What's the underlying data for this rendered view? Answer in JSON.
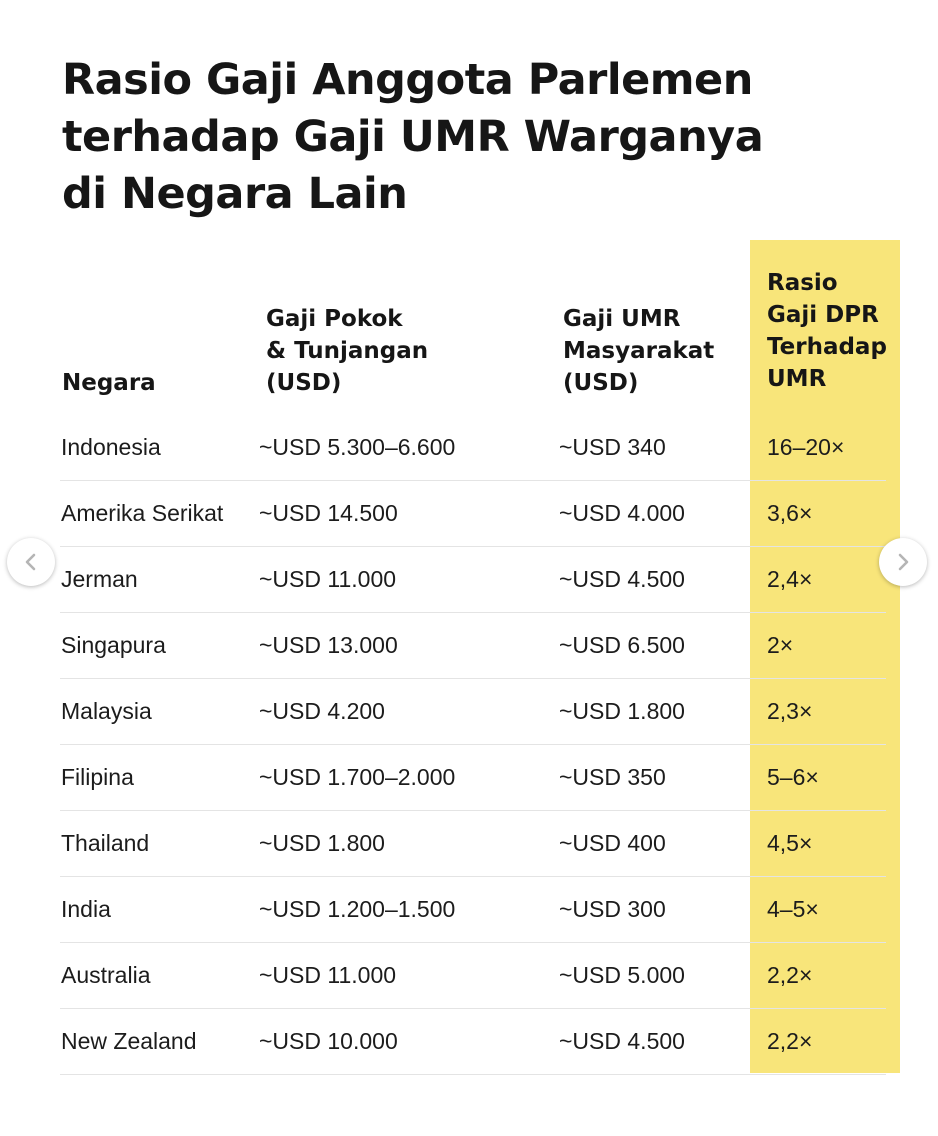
{
  "title": {
    "line1": "Rasio Gaji Anggota Parlemen",
    "line2": "terhadap Gaji UMR Warganya",
    "line3": "di Negara Lain"
  },
  "headers": {
    "country": "Negara",
    "salary": [
      "Gaji Pokok",
      "& Tunjangan",
      "(USD)"
    ],
    "umr": [
      "Gaji UMR",
      "Masyarakat",
      "(USD)"
    ],
    "ratio": [
      "Rasio",
      "Gaji DPR",
      "Terhadap",
      "UMR"
    ]
  },
  "rows": [
    {
      "country": "Indonesia",
      "salary": "~USD 5.300–6.600",
      "umr": "~USD 340",
      "ratio": "16–20×"
    },
    {
      "country": "Amerika Serikat",
      "salary": "~USD 14.500",
      "umr": "~USD 4.000",
      "ratio": "3,6×"
    },
    {
      "country": "Jerman",
      "salary": "~USD 11.000",
      "umr": "~USD 4.500",
      "ratio": "2,4×"
    },
    {
      "country": "Singapura",
      "salary": "~USD 13.000",
      "umr": "~USD 6.500",
      "ratio": "2×"
    },
    {
      "country": "Malaysia",
      "salary": "~USD 4.200",
      "umr": "~USD 1.800",
      "ratio": "2,3×"
    },
    {
      "country": "Filipina",
      "salary": "~USD 1.700–2.000",
      "umr": "~USD 350",
      "ratio": "5–6×"
    },
    {
      "country": "Thailand",
      "salary": "~USD 1.800",
      "umr": "~USD 400",
      "ratio": "4,5×"
    },
    {
      "country": "India",
      "salary": "~USD 1.200–1.500",
      "umr": "~USD 300",
      "ratio": "4–5×"
    },
    {
      "country": "Australia",
      "salary": "~USD 11.000",
      "umr": "~USD 5.000",
      "ratio": "2,2×"
    },
    {
      "country": "New Zealand",
      "salary": "~USD 10.000",
      "umr": "~USD 4.500",
      "ratio": "2,2×"
    }
  ],
  "colors": {
    "highlight": "#f8e57a",
    "text": "#161616",
    "divider": "#e4e4e4"
  },
  "icons": {
    "prev": "chevron-left-icon",
    "next": "chevron-right-icon"
  }
}
